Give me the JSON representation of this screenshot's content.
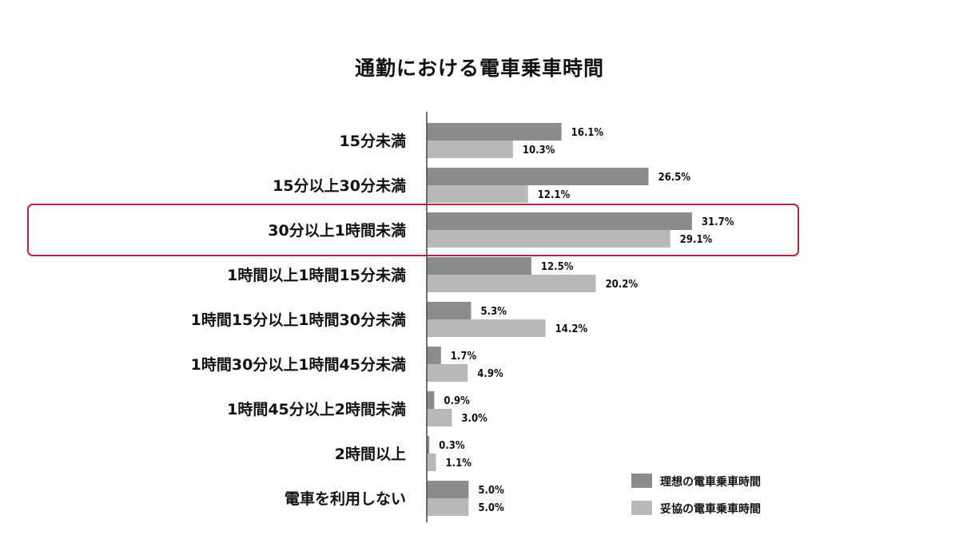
{
  "chart_data": {
    "type": "bar",
    "orientation": "horizontal",
    "title": "通勤における電車乗車時間",
    "categories": [
      "15分未満",
      "15分以上30分未満",
      "30分以上1時間未満",
      "1時間以上1時間15分未満",
      "1時間15分以上1時間30分未満",
      "1時間30分以上1時間45分未満",
      "1時間45分以上2時間未満",
      "2時間以上",
      "電車を利用しない"
    ],
    "series": [
      {
        "name": "理想の電車乗車時間",
        "color": "#8c8c8c",
        "values": [
          16.1,
          26.5,
          31.7,
          12.5,
          5.3,
          1.7,
          0.9,
          0.3,
          5.0
        ],
        "labels": [
          "16.1%",
          "26.5%",
          "31.7%",
          "12.5%",
          "5.3%",
          "1.7%",
          "0.9%",
          "0.3%",
          "5.0%"
        ]
      },
      {
        "name": "妥協の電車乗車時間",
        "color": "#b8b8b8",
        "values": [
          10.3,
          12.1,
          29.1,
          20.2,
          14.2,
          4.9,
          3.0,
          1.1,
          5.0
        ],
        "labels": [
          "10.3%",
          "12.1%",
          "29.1%",
          "20.2%",
          "14.2%",
          "4.9%",
          "3.0%",
          "1.1%",
          "5.0%"
        ]
      }
    ],
    "xlim": [
      0,
      35
    ],
    "highlight_category": "30分以上1時間未満",
    "highlight_color": "#b5283a",
    "legend_position": "bottom-right"
  }
}
